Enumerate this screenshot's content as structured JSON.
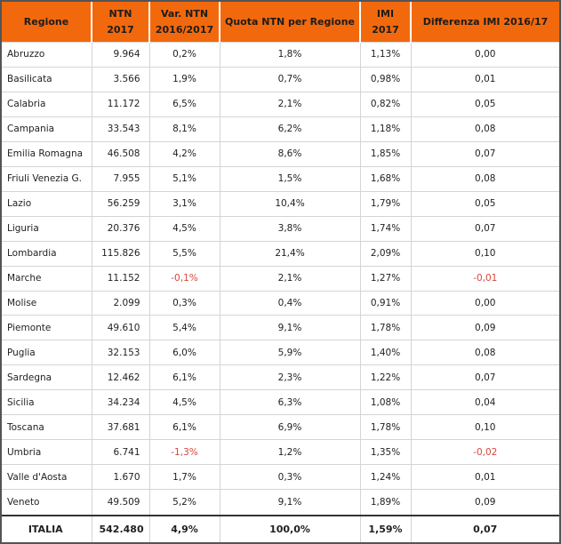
{
  "colors": {
    "header_bg": "#F2690D",
    "header_text": "#1C1C1C",
    "body_text": "#1F1F1F",
    "negative_text": "#D9453C",
    "outer_border": "#545456",
    "grid_line": "#D4D4D4",
    "total_divider": "#333333",
    "row_bg": "#FFFFFF"
  },
  "table": {
    "columns": [
      {
        "id": "regione",
        "label": "Regione"
      },
      {
        "id": "ntn-2017",
        "label": "NTN\n2017"
      },
      {
        "id": "var-ntn",
        "label": "Var. NTN\n2016/2017"
      },
      {
        "id": "quota-ntn",
        "label": "Quota NTN per Regione"
      },
      {
        "id": "imi-2017",
        "label": "IMI\n2017"
      },
      {
        "id": "diff-imi",
        "label": "Differenza IMI 2016/17"
      }
    ],
    "rows": [
      [
        "Abruzzo",
        "9.964",
        "0,2%",
        "1,8%",
        "1,13%",
        "0,00"
      ],
      [
        "Basilicata",
        "3.566",
        "1,9%",
        "0,7%",
        "0,98%",
        "0,01"
      ],
      [
        "Calabria",
        "11.172",
        "6,5%",
        "2,1%",
        "0,82%",
        "0,05"
      ],
      [
        "Campania",
        "33.543",
        "8,1%",
        "6,2%",
        "1,18%",
        "0,08"
      ],
      [
        "Emilia Romagna",
        "46.508",
        "4,2%",
        "8,6%",
        "1,85%",
        "0,07"
      ],
      [
        "Friuli Venezia G.",
        "7.955",
        "5,1%",
        "1,5%",
        "1,68%",
        "0,08"
      ],
      [
        "Lazio",
        "56.259",
        "3,1%",
        "10,4%",
        "1,79%",
        "0,05"
      ],
      [
        "Liguria",
        "20.376",
        "4,5%",
        "3,8%",
        "1,74%",
        "0,07"
      ],
      [
        "Lombardia",
        "115.826",
        "5,5%",
        "21,4%",
        "2,09%",
        "0,10"
      ],
      [
        "Marche",
        "11.152",
        "-0,1%",
        "2,1%",
        "1,27%",
        "-0,01"
      ],
      [
        "Molise",
        "2.099",
        "0,3%",
        "0,4%",
        "0,91%",
        "0,00"
      ],
      [
        "Piemonte",
        "49.610",
        "5,4%",
        "9,1%",
        "1,78%",
        "0,09"
      ],
      [
        "Puglia",
        "32.153",
        "6,0%",
        "5,9%",
        "1,40%",
        "0,08"
      ],
      [
        "Sardegna",
        "12.462",
        "6,1%",
        "2,3%",
        "1,22%",
        "0,07"
      ],
      [
        "Sicilia",
        "34.234",
        "4,5%",
        "6,3%",
        "1,08%",
        "0,04"
      ],
      [
        "Toscana",
        "37.681",
        "6,1%",
        "6,9%",
        "1,78%",
        "0,10"
      ],
      [
        "Umbria",
        "6.741",
        "-1,3%",
        "1,2%",
        "1,35%",
        "-0,02"
      ],
      [
        "Valle d'Aosta",
        "1.670",
        "1,7%",
        "0,3%",
        "1,24%",
        "0,01"
      ],
      [
        "Veneto",
        "49.509",
        "5,2%",
        "9,1%",
        "1,89%",
        "0,09"
      ]
    ],
    "total_row": [
      "ITALIA",
      "542.480",
      "4,9%",
      "100,0%",
      "1,59%",
      "0,07"
    ]
  }
}
